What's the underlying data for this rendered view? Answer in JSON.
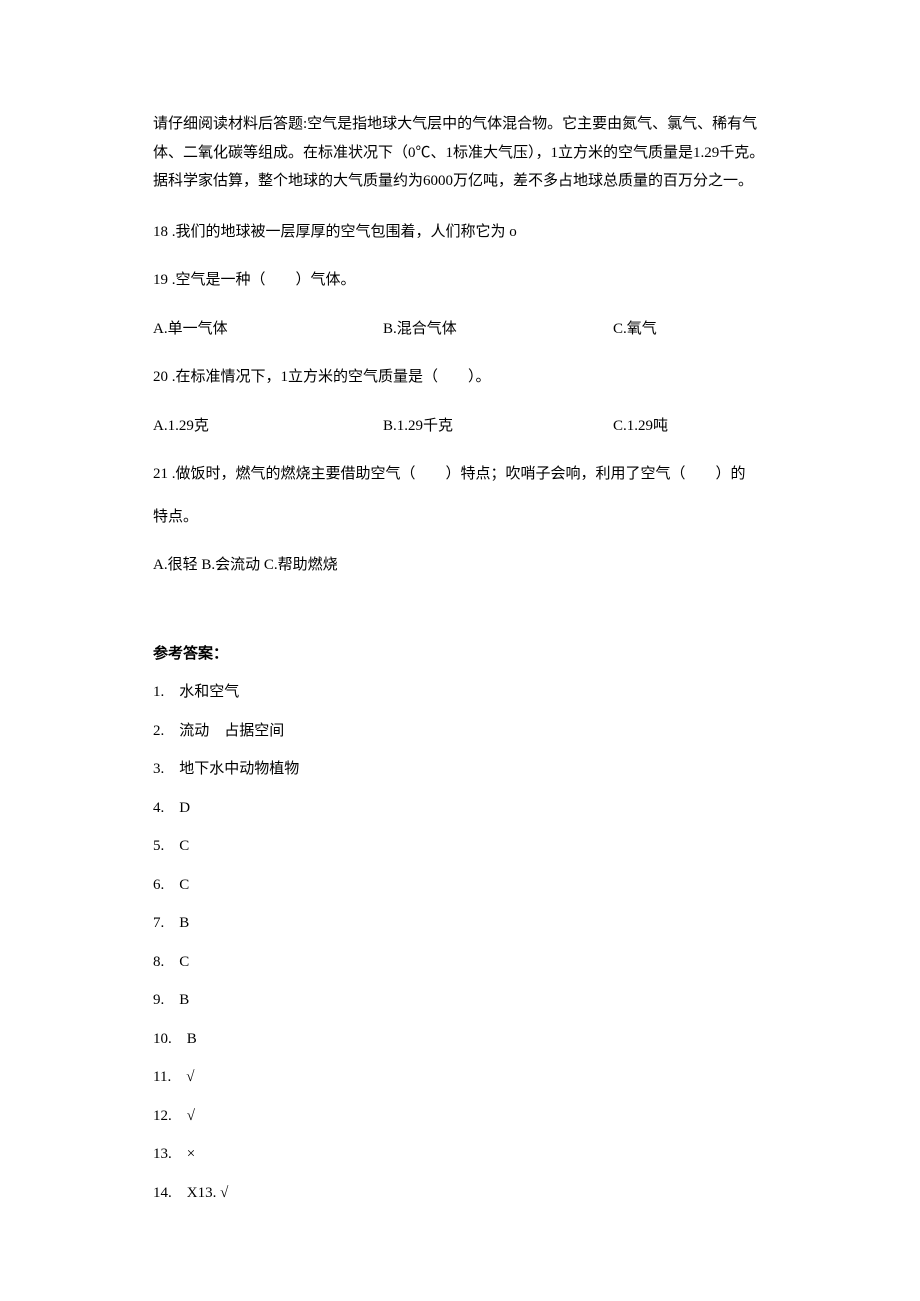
{
  "passage": "请仔细阅读材料后答题:空气是指地球大气层中的气体混合物。它主要由氮气、氯气、稀有气体、二氧化碳等组成。在标准状况下（0℃、1标准大气压），1立方米的空气质量是1.29千克。据科学家估算，整个地球的大气质量约为6000万亿吨，差不多占地球总质量的百万分之一。",
  "q18": "18 .我们的地球被一层厚厚的空气包围着，人们称它为 o",
  "q19": {
    "text": "19 .空气是一种（　　）气体。",
    "a": "A.单一气体",
    "b": "B.混合气体",
    "c": "C.氧气"
  },
  "q20": {
    "text": "20 .在标准情况下，1立方米的空气质量是（　　）。",
    "a": "A.1.29克",
    "b": "B.1.29千克",
    "c": "C.1.29吨"
  },
  "q21": {
    "line1": "21 .做饭时，燃气的燃烧主要借助空气（　　）特点；吹哨子会响，利用了空气（　　）的",
    "line2": "特点。",
    "opts": "A.很轻 B.会流动 C.帮助燃烧"
  },
  "answers": {
    "heading": "参考答案：",
    "items": [
      "1.　水和空气",
      "2.　流动　占据空间",
      "3.　地下水中动物植物",
      "4.　D",
      "5.　C",
      "6.　C",
      "7.　B",
      "8.　C",
      "9.　B",
      "10.　B",
      "11.　√",
      "12.　√",
      "13.　×",
      "14.　X13. √"
    ]
  }
}
